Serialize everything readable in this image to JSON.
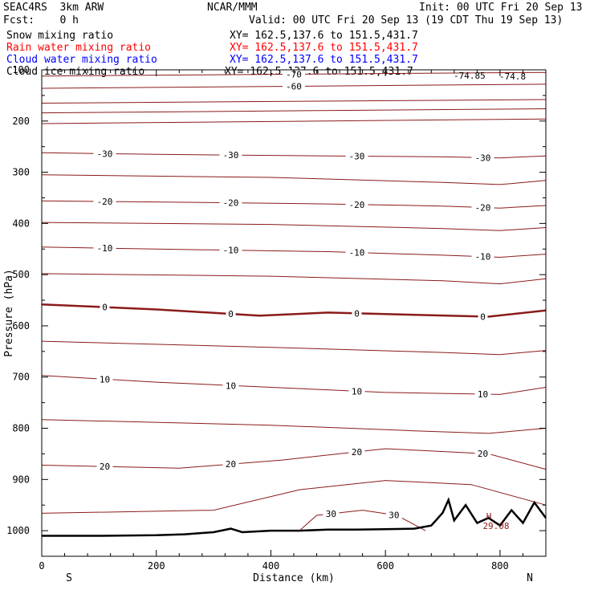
{
  "header": {
    "model": "SEAC4RS  3km ARW",
    "org": "NCAR/MMM",
    "init": "Init: 00 UTC Fri 20 Sep 13",
    "fcst": "Fcst:    0 h",
    "valid": "Valid: 00 UTC Fri 20 Sep 13 (19 CDT Thu 19 Sep 13)",
    "fields": [
      {
        "name": "Snow mixing ratio",
        "xy": "XY= 162.5,137.6 to 151.5,431.7",
        "color": "#000000"
      },
      {
        "name": "Rain water mixing ratio",
        "xy": "XY= 162.5,137.6 to 151.5,431.7",
        "color": "#ff0000"
      },
      {
        "name": "Cloud water mixing ratio",
        "xy": "XY= 162.5,137.6 to 151.5,431.7",
        "color": "#0000ff"
      },
      {
        "name": "Cloud ice mixing ratio",
        "xy": "XY= 162.5,137.6 to 151.5,431.7",
        "color": "#000000"
      }
    ]
  },
  "chart_data": {
    "type": "line",
    "title": "",
    "xlabel": "Distance (km)",
    "ylabel": "Pressure (hPa)",
    "xlim": [
      0,
      880
    ],
    "ylim": [
      100,
      1050
    ],
    "y_axis": "inverted",
    "x_ticks": [
      0,
      200,
      400,
      600,
      800
    ],
    "y_ticks": [
      100,
      200,
      300,
      400,
      500,
      600,
      700,
      800,
      900,
      1000
    ],
    "x_tick_labels": [
      "0",
      "200",
      "400",
      "600",
      "800"
    ],
    "y_tick_labels": [
      "100",
      "200",
      "300",
      "400",
      "500",
      "600",
      "700",
      "800",
      "900",
      "1000"
    ],
    "endpoint_labels": {
      "left": "S",
      "right": "N"
    },
    "grid": false,
    "contour_color": "#8b1a1a",
    "contour_interval": 5,
    "temperature_contours": [
      {
        "level": -70,
        "labels": [
          "-70"
        ],
        "x": [
          0,
          880
        ],
        "y": [
          112,
          105
        ]
      },
      {
        "level": -60,
        "labels": [
          "-60"
        ],
        "x": [
          0,
          880
        ],
        "y": [
          136,
          128
        ]
      },
      {
        "level": -45,
        "labels": [],
        "x": [
          0,
          880
        ],
        "y": [
          165,
          158
        ]
      },
      {
        "level": -40,
        "labels": [],
        "x": [
          0,
          880
        ],
        "y": [
          184,
          176
        ]
      },
      {
        "level": -35,
        "labels": [],
        "x": [
          0,
          880
        ],
        "y": [
          205,
          196
        ]
      },
      {
        "level": -30,
        "labels": [
          "-30",
          "-30",
          "-30",
          "-30"
        ],
        "x": [
          0,
          200,
          500,
          700,
          800,
          880
        ],
        "y": [
          262,
          265,
          268,
          270,
          272,
          268
        ]
      },
      {
        "level": -25,
        "labels": [],
        "x": [
          0,
          400,
          700,
          800,
          880
        ],
        "y": [
          305,
          310,
          320,
          324,
          316
        ]
      },
      {
        "level": -20,
        "labels": [
          "-20",
          "-20",
          "-20",
          "-20"
        ],
        "x": [
          0,
          200,
          500,
          700,
          800,
          880
        ],
        "y": [
          356,
          358,
          362,
          366,
          370,
          365
        ]
      },
      {
        "level": -15,
        "labels": [],
        "x": [
          0,
          400,
          700,
          800,
          880
        ],
        "y": [
          398,
          402,
          410,
          414,
          408
        ]
      },
      {
        "level": -10,
        "labels": [
          "-10",
          "-10",
          "-10",
          "-10"
        ],
        "x": [
          0,
          200,
          500,
          700,
          800,
          880
        ],
        "y": [
          446,
          450,
          455,
          462,
          466,
          460
        ]
      },
      {
        "level": -5,
        "labels": [],
        "x": [
          0,
          400,
          700,
          800,
          880
        ],
        "y": [
          498,
          503,
          512,
          518,
          508
        ]
      },
      {
        "level": 0,
        "labels": [
          "0",
          "0",
          "0",
          "0"
        ],
        "x": [
          0,
          200,
          380,
          500,
          600,
          780,
          880
        ],
        "y": [
          558,
          568,
          580,
          574,
          577,
          582,
          570
        ]
      },
      {
        "level": 5,
        "labels": [],
        "x": [
          0,
          400,
          700,
          800,
          880
        ],
        "y": [
          630,
          642,
          652,
          656,
          648
        ]
      },
      {
        "level": 10,
        "labels": [
          "10",
          "10",
          "10",
          "10"
        ],
        "x": [
          0,
          200,
          400,
          600,
          800,
          880
        ],
        "y": [
          697,
          710,
          720,
          730,
          734,
          720
        ]
      },
      {
        "level": 15,
        "labels": [],
        "x": [
          0,
          400,
          650,
          780,
          880
        ],
        "y": [
          783,
          794,
          805,
          810,
          800
        ]
      },
      {
        "level": 20,
        "labels": [
          "20",
          "20",
          "20",
          "20"
        ],
        "x": [
          0,
          240,
          420,
          600,
          780,
          880
        ],
        "y": [
          872,
          878,
          862,
          840,
          850,
          880
        ]
      },
      {
        "level": 25,
        "labels": [],
        "x": [
          0,
          300,
          450,
          600,
          750,
          880
        ],
        "y": [
          966,
          960,
          920,
          902,
          910,
          950
        ]
      },
      {
        "level": 30,
        "labels": [
          "30",
          "30"
        ],
        "x": [
          450,
          480,
          560,
          620,
          670
        ],
        "y": [
          1000,
          970,
          960,
          970,
          1000
        ]
      }
    ],
    "top_annotations": [
      "-74.85",
      "-74.8"
    ],
    "extremum": {
      "type": "H",
      "value": "29.08"
    },
    "terrain": {
      "x": [
        0,
        100,
        200,
        250,
        300,
        330,
        350,
        400,
        450,
        500,
        550,
        600,
        650,
        680,
        700,
        710,
        720,
        740,
        760,
        780,
        800,
        820,
        840,
        860,
        880
      ],
      "y": [
        1010,
        1010,
        1009,
        1007,
        1003,
        996,
        1003,
        1000,
        1000,
        998,
        998,
        997,
        996,
        990,
        965,
        940,
        980,
        950,
        985,
        975,
        990,
        960,
        985,
        945,
        975
      ]
    }
  }
}
